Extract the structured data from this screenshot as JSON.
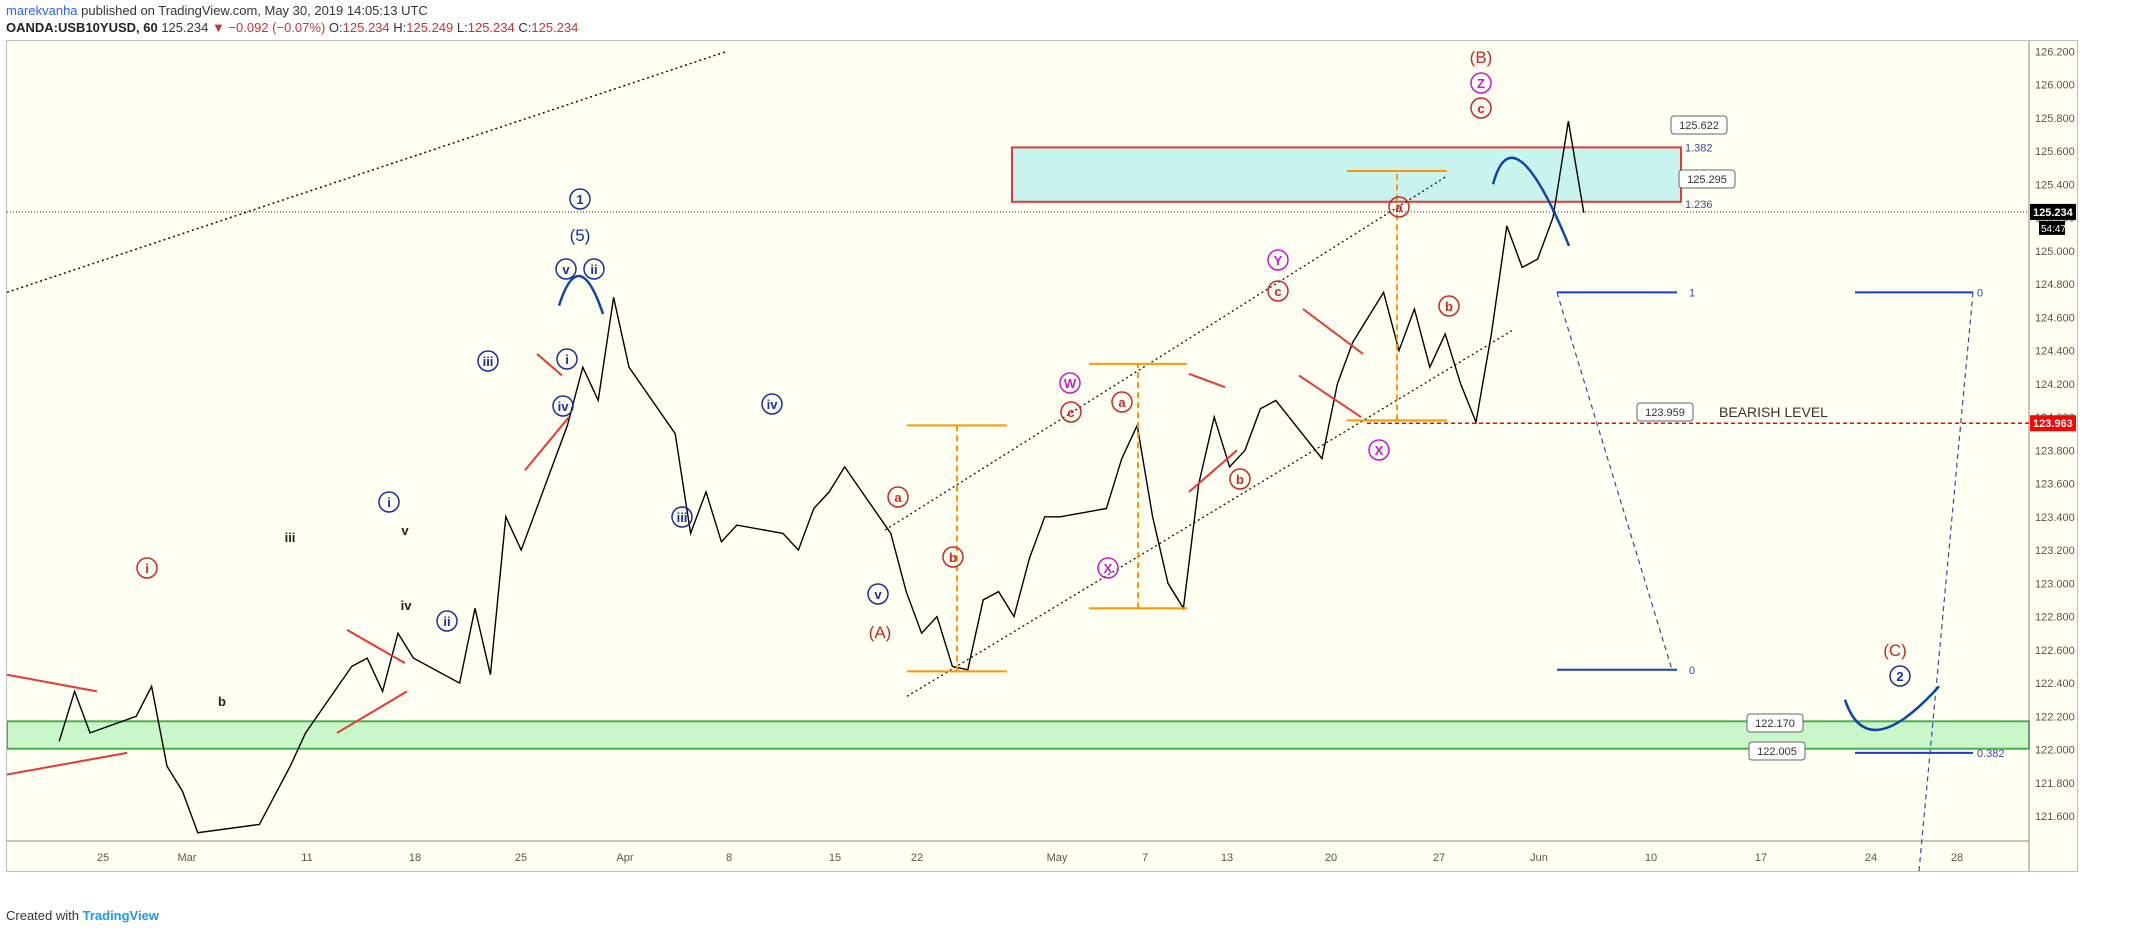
{
  "header": {
    "author": "marekvanha",
    "published": "published on TradingView.com, May 30, 2019 14:05:13 UTC",
    "symbol": "OANDA:USB10YUSD, 60",
    "last": "125.234",
    "change": "▼ −0.092 (−0.07%)",
    "o_label": "O:",
    "o": "125.234",
    "h_label": "H:",
    "h": "125.249",
    "l_label": "L:",
    "l": "125.234",
    "c_label": "C:",
    "c": "125.234"
  },
  "footer": {
    "created_with": "Created with",
    "brand": "TradingView"
  },
  "colors": {
    "price_line": "#000000",
    "wave_blue": "#1a2ea0",
    "wave_red": "#c62828",
    "wave_magenta": "#c71ad1",
    "fib_orange": "#ff9800",
    "zone_cyan": "#c9f3ef",
    "zone_green": "#c9f7c9",
    "bearish": "#ff0000",
    "arrow_blue": "#0d47a1"
  },
  "chart_data": {
    "type": "line",
    "title": "",
    "ylim": [
      121.45,
      126.25
    ],
    "y_ticks": [
      "126.200",
      "126.000",
      "125.800",
      "125.600",
      "125.400",
      "125.200",
      "125.000",
      "124.800",
      "124.600",
      "124.400",
      "124.200",
      "124.000",
      "123.800",
      "123.600",
      "123.400",
      "123.200",
      "123.000",
      "122.800",
      "122.600",
      "122.400",
      "122.200",
      "122.000",
      "121.800",
      "121.600"
    ],
    "x_ticks": [
      "25",
      "Mar",
      "11",
      "18",
      "25",
      "Apr",
      "8",
      "15",
      "22",
      "May",
      "7",
      "13",
      "20",
      "27",
      "Jun",
      "10",
      "17",
      "24",
      "28"
    ],
    "series": [
      {
        "name": "",
        "points": [
          [
            "2019-02-20",
            122.05
          ],
          [
            "2019-02-21",
            122.35
          ],
          [
            "2019-02-22",
            122.1
          ],
          [
            "2019-02-25",
            122.2
          ],
          [
            "2019-02-26",
            122.38
          ],
          [
            "2019-02-27",
            121.9
          ],
          [
            "2019-02-28",
            121.75
          ],
          [
            "2019-03-01",
            121.5
          ],
          [
            "2019-03-05",
            121.55
          ],
          [
            "2019-03-07",
            121.9
          ],
          [
            "2019-03-08",
            122.1
          ],
          [
            "2019-03-11",
            122.5
          ],
          [
            "2019-03-12",
            122.55
          ],
          [
            "2019-03-13",
            122.35
          ],
          [
            "2019-03-14",
            122.7
          ],
          [
            "2019-03-15",
            122.55
          ],
          [
            "2019-03-18",
            122.4
          ],
          [
            "2019-03-19",
            122.85
          ],
          [
            "2019-03-20",
            122.45
          ],
          [
            "2019-03-21",
            123.4
          ],
          [
            "2019-03-22",
            123.2
          ],
          [
            "2019-03-25",
            123.95
          ],
          [
            "2019-03-26",
            124.3
          ],
          [
            "2019-03-27",
            124.1
          ],
          [
            "2019-03-28",
            124.72
          ],
          [
            "2019-03-29",
            124.3
          ],
          [
            "2019-04-01",
            123.9
          ],
          [
            "2019-04-02",
            123.3
          ],
          [
            "2019-04-03",
            123.55
          ],
          [
            "2019-04-04",
            123.25
          ],
          [
            "2019-04-05",
            123.35
          ],
          [
            "2019-04-08",
            123.3
          ],
          [
            "2019-04-09",
            123.2
          ],
          [
            "2019-04-10",
            123.45
          ],
          [
            "2019-04-11",
            123.55
          ],
          [
            "2019-04-12",
            123.7
          ],
          [
            "2019-04-15",
            123.3
          ],
          [
            "2019-04-16",
            122.95
          ],
          [
            "2019-04-17",
            122.7
          ],
          [
            "2019-04-18",
            122.8
          ],
          [
            "2019-04-19",
            122.5
          ],
          [
            "2019-04-20",
            122.48
          ],
          [
            "2019-04-21",
            122.9
          ],
          [
            "2019-04-22",
            122.95
          ],
          [
            "2019-04-23",
            122.8
          ],
          [
            "2019-04-24",
            123.15
          ],
          [
            "2019-04-25",
            123.4
          ],
          [
            "2019-04-26",
            123.4
          ],
          [
            "2019-04-29",
            123.45
          ],
          [
            "2019-04-30",
            123.75
          ],
          [
            "2019-05-01",
            123.95
          ],
          [
            "2019-05-02",
            123.4
          ],
          [
            "2019-05-03",
            123.0
          ],
          [
            "2019-05-04",
            122.85
          ],
          [
            "2019-05-05",
            123.6
          ],
          [
            "2019-05-06",
            124.0
          ],
          [
            "2019-05-07",
            123.7
          ],
          [
            "2019-05-08",
            123.8
          ],
          [
            "2019-05-09",
            124.05
          ],
          [
            "2019-05-10",
            124.1
          ],
          [
            "2019-05-13",
            123.75
          ],
          [
            "2019-05-14",
            124.2
          ],
          [
            "2019-05-15",
            124.45
          ],
          [
            "2019-05-16",
            124.6
          ],
          [
            "2019-05-17",
            124.75
          ],
          [
            "2019-05-18",
            124.4
          ],
          [
            "2019-05-19",
            124.65
          ],
          [
            "2019-05-20",
            124.3
          ],
          [
            "2019-05-21",
            124.5
          ],
          [
            "2019-05-22",
            124.2
          ],
          [
            "2019-05-23",
            123.97
          ],
          [
            "2019-05-24",
            124.5
          ],
          [
            "2019-05-25",
            125.15
          ],
          [
            "2019-05-26",
            124.9
          ],
          [
            "2019-05-27",
            124.95
          ],
          [
            "2019-05-28",
            125.2
          ],
          [
            "2019-05-29",
            125.78
          ],
          [
            "2019-05-30",
            125.23
          ]
        ]
      }
    ],
    "last_price": 125.234,
    "price_labels": [
      "125.234",
      "123.963"
    ],
    "countdown": "54:47",
    "zones": [
      {
        "type": "resistance",
        "from": 125.295,
        "to": 125.622,
        "fib_low": "1.236",
        "fib_high": "1.382"
      },
      {
        "type": "support",
        "from": 122.005,
        "to": 122.17
      }
    ],
    "callouts": [
      "125.622",
      "125.295",
      "123.959",
      "122.170",
      "122.005"
    ],
    "bearish_level": {
      "price": 123.963,
      "label": "BEARISH LEVEL"
    },
    "fib_labels": [
      "1",
      "0",
      "0",
      "0.382"
    ],
    "wave_labels": [
      "(B)",
      "Z",
      "c",
      "1",
      "(5)",
      "v",
      "ii",
      "iii",
      "i",
      "iv",
      "iv",
      "iii",
      "i",
      "ii",
      "iii",
      "v",
      "iv",
      "b",
      "i",
      "v",
      "(A)",
      "a",
      "b",
      "W",
      "c",
      "a",
      "b",
      "X",
      "Y",
      "c",
      "a",
      "b",
      "X",
      "(C)",
      "2"
    ]
  }
}
